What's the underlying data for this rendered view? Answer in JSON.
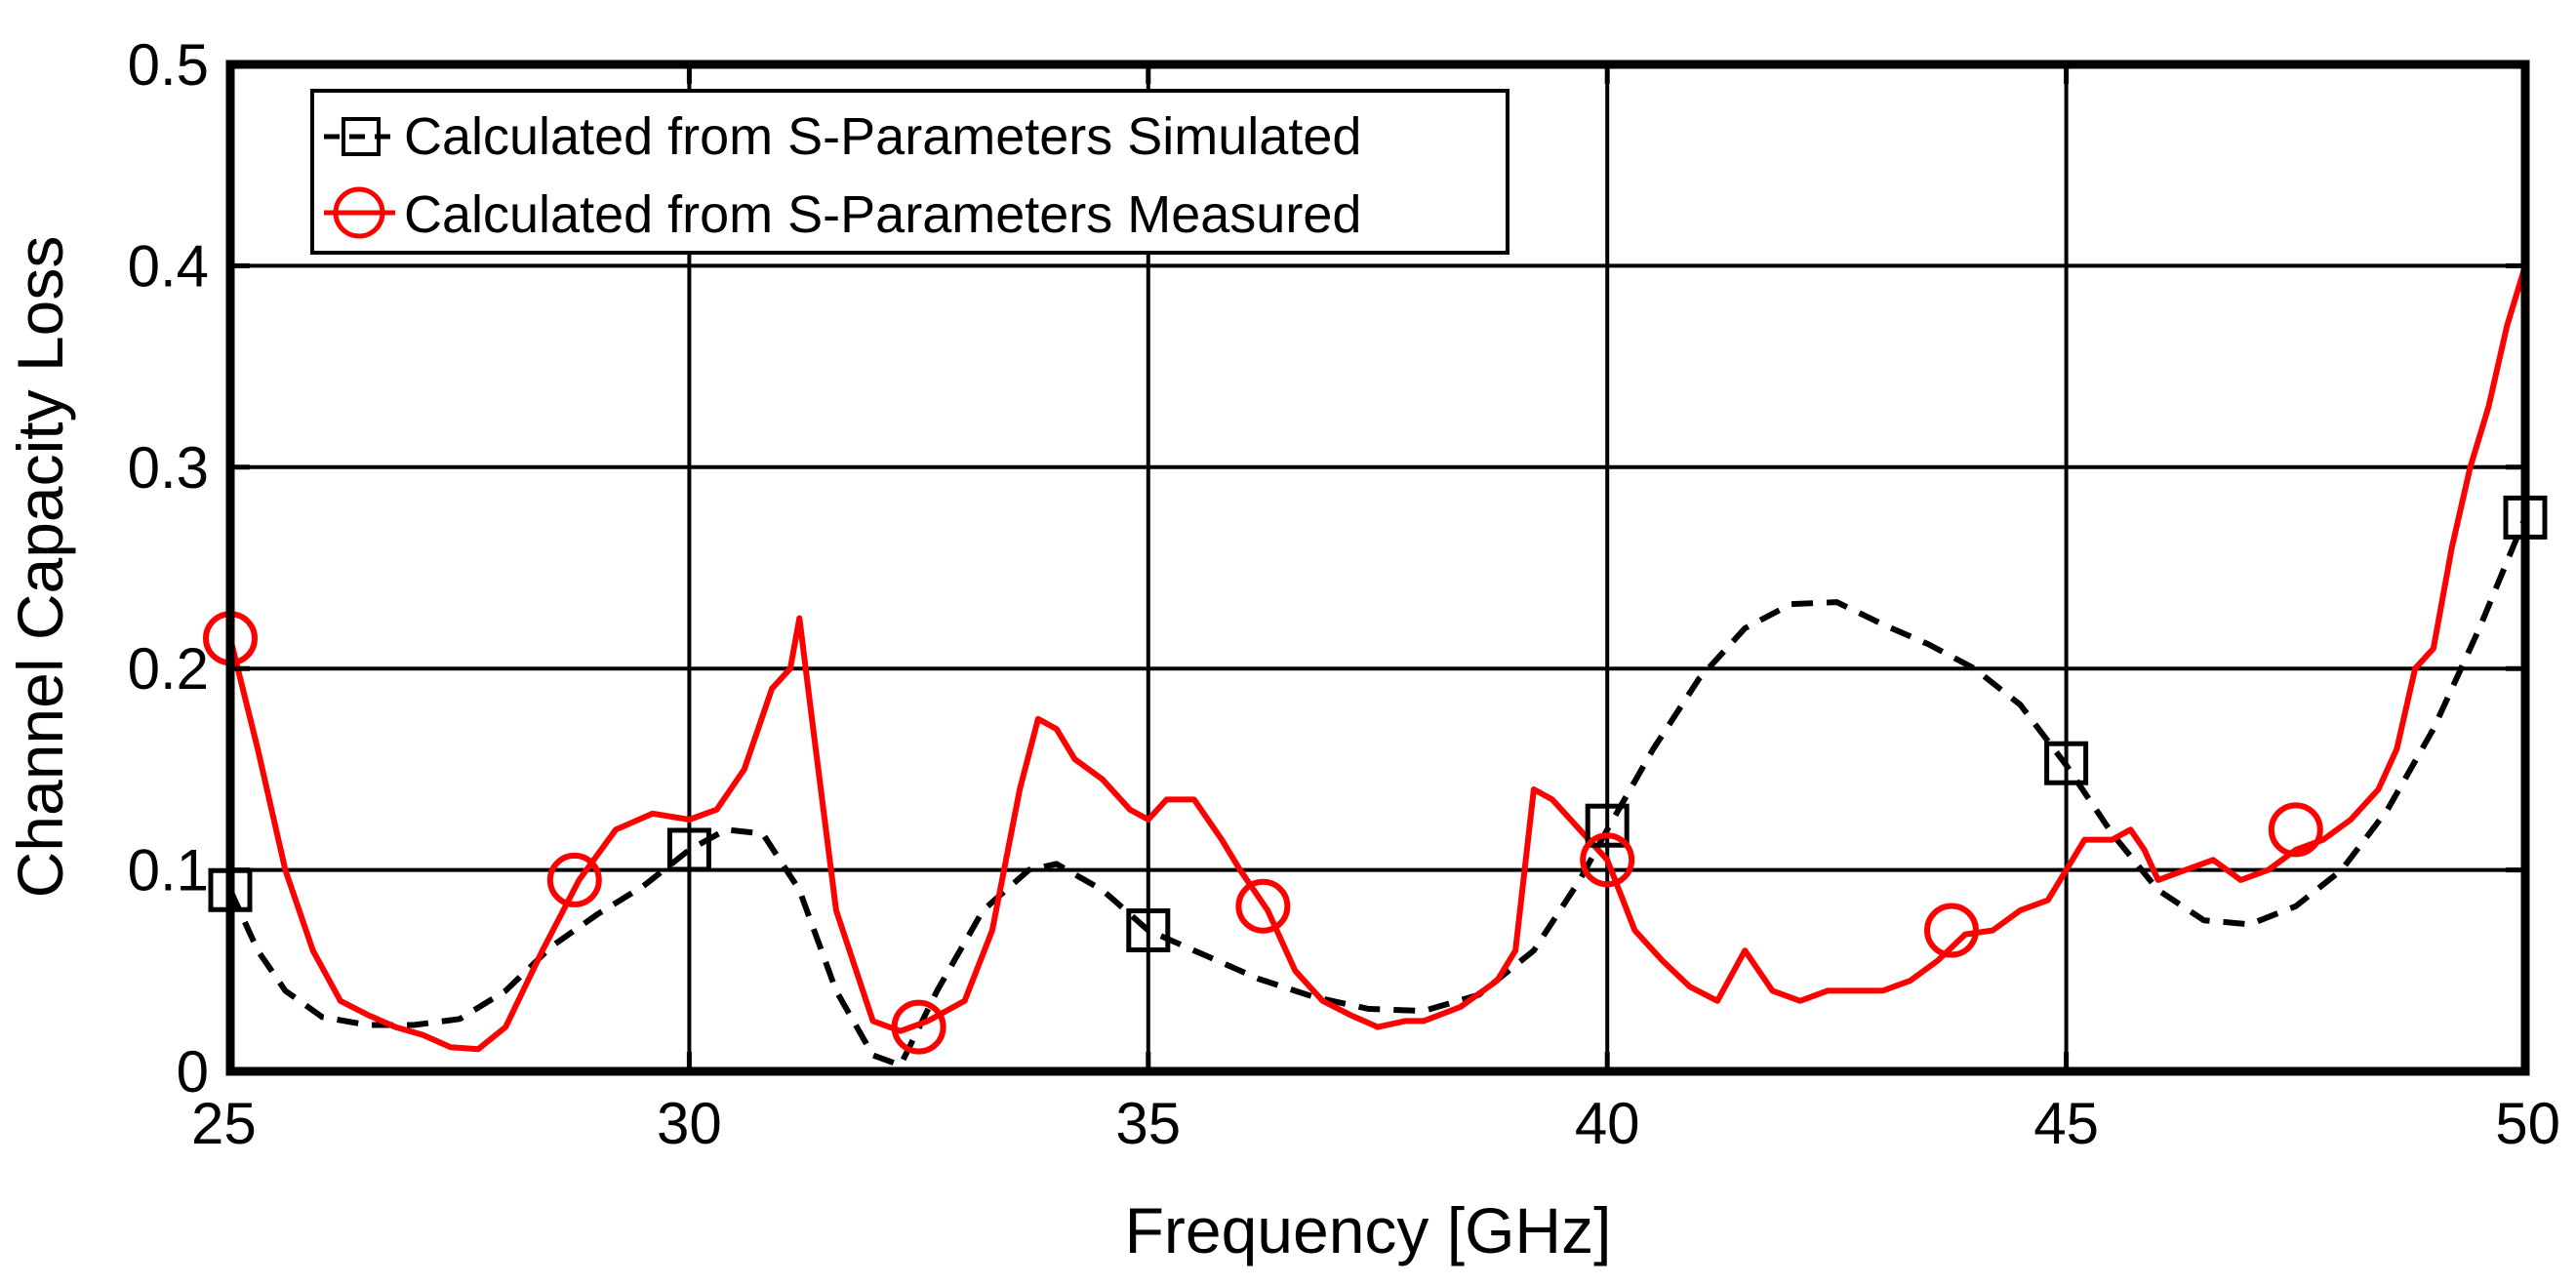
{
  "chart_data": {
    "type": "line",
    "title": "",
    "xlabel": "Frequency [GHz]",
    "ylabel": "Channel Capacity Loss",
    "xlim": [
      25,
      50
    ],
    "ylim": [
      0,
      0.5
    ],
    "xticks": [
      25,
      30,
      35,
      40,
      45,
      50
    ],
    "yticks": [
      0,
      0.1,
      0.2,
      0.3,
      0.4,
      0.5
    ],
    "xtick_labels": [
      "25",
      "30",
      "35",
      "40",
      "45",
      "50"
    ],
    "ytick_labels": [
      "0",
      "0.1",
      "0.2",
      "0.3",
      "0.4",
      "0.5"
    ],
    "grid": true,
    "legend_position": "top-left",
    "series": [
      {
        "name": "Calculated from S-Parameters Simulated",
        "color": "#000000",
        "line_style": "dashed",
        "marker": "square",
        "x": [
          25.0,
          25.3,
          25.6,
          26.0,
          26.5,
          27.0,
          27.5,
          28.0,
          28.5,
          29.0,
          29.5,
          30.0,
          30.4,
          30.8,
          31.2,
          31.6,
          32.0,
          32.3,
          32.7,
          33.2,
          33.7,
          34.0,
          34.5,
          35.0,
          35.6,
          36.2,
          36.8,
          37.4,
          38.0,
          38.6,
          39.2,
          39.7,
          40.0,
          40.5,
          41.0,
          41.5,
          42.0,
          42.5,
          43.0,
          43.5,
          44.0,
          44.5,
          45.0,
          45.5,
          46.0,
          46.5,
          47.0,
          47.5,
          48.0,
          48.5,
          49.0,
          49.5,
          50.0
        ],
        "y": [
          0.09,
          0.06,
          0.04,
          0.027,
          0.023,
          0.023,
          0.026,
          0.04,
          0.062,
          0.078,
          0.092,
          0.11,
          0.12,
          0.118,
          0.09,
          0.04,
          0.008,
          0.003,
          0.04,
          0.08,
          0.1,
          0.103,
          0.09,
          0.07,
          0.058,
          0.046,
          0.037,
          0.031,
          0.03,
          0.038,
          0.06,
          0.095,
          0.12,
          0.16,
          0.195,
          0.22,
          0.232,
          0.233,
          0.222,
          0.212,
          0.2,
          0.182,
          0.152,
          0.118,
          0.09,
          0.075,
          0.073,
          0.082,
          0.1,
          0.13,
          0.17,
          0.22,
          0.275
        ],
        "markers": [
          [
            25.0,
            0.09
          ],
          [
            30.0,
            0.11
          ],
          [
            35.0,
            0.07
          ],
          [
            40.0,
            0.122
          ],
          [
            45.0,
            0.153
          ],
          [
            50.0,
            0.275
          ]
        ]
      },
      {
        "name": "Calculated from S-Parameters Measured",
        "color": "#ff0000",
        "line_style": "solid",
        "marker": "circle",
        "x": [
          25.0,
          25.3,
          25.6,
          25.9,
          26.2,
          26.5,
          26.8,
          27.1,
          27.4,
          27.7,
          28.0,
          28.4,
          28.8,
          29.2,
          29.6,
          30.0,
          30.3,
          30.6,
          30.9,
          31.1,
          31.2,
          31.35,
          31.6,
          32.0,
          32.3,
          32.6,
          33.0,
          33.3,
          33.6,
          33.8,
          34.0,
          34.2,
          34.5,
          34.8,
          35.0,
          35.2,
          35.5,
          35.8,
          36.0,
          36.3,
          36.6,
          36.9,
          37.2,
          37.5,
          37.8,
          38.0,
          38.4,
          38.8,
          39.0,
          39.1,
          39.2,
          39.4,
          39.7,
          40.0,
          40.3,
          40.6,
          40.9,
          41.2,
          41.5,
          41.8,
          42.1,
          42.4,
          42.7,
          43.0,
          43.3,
          43.6,
          43.9,
          44.2,
          44.5,
          44.8,
          45.0,
          45.2,
          45.5,
          45.7,
          45.85,
          46.0,
          46.3,
          46.6,
          46.9,
          47.2,
          47.5,
          47.8,
          48.1,
          48.4,
          48.6,
          48.8,
          49.0,
          49.2,
          49.4,
          49.6,
          49.8,
          50.0
        ],
        "y": [
          0.215,
          0.16,
          0.1,
          0.06,
          0.035,
          0.028,
          0.022,
          0.018,
          0.012,
          0.011,
          0.022,
          0.06,
          0.095,
          0.12,
          0.128,
          0.125,
          0.13,
          0.15,
          0.19,
          0.2,
          0.225,
          0.17,
          0.08,
          0.025,
          0.02,
          0.025,
          0.035,
          0.07,
          0.14,
          0.175,
          0.17,
          0.155,
          0.145,
          0.13,
          0.125,
          0.135,
          0.135,
          0.115,
          0.1,
          0.08,
          0.05,
          0.035,
          0.028,
          0.022,
          0.025,
          0.025,
          0.032,
          0.045,
          0.06,
          0.1,
          0.14,
          0.135,
          0.12,
          0.105,
          0.07,
          0.055,
          0.042,
          0.035,
          0.06,
          0.04,
          0.035,
          0.04,
          0.04,
          0.04,
          0.045,
          0.055,
          0.068,
          0.07,
          0.08,
          0.085,
          0.1,
          0.115,
          0.115,
          0.12,
          0.11,
          0.095,
          0.1,
          0.105,
          0.095,
          0.1,
          0.11,
          0.115,
          0.125,
          0.14,
          0.16,
          0.2,
          0.21,
          0.26,
          0.3,
          0.33,
          0.37,
          0.4
        ],
        "markers": [
          [
            25.0,
            0.215
          ],
          [
            28.75,
            0.095
          ],
          [
            32.5,
            0.022
          ],
          [
            36.25,
            0.082
          ],
          [
            40.0,
            0.105
          ],
          [
            43.75,
            0.07
          ],
          [
            47.5,
            0.12
          ]
        ]
      }
    ]
  }
}
